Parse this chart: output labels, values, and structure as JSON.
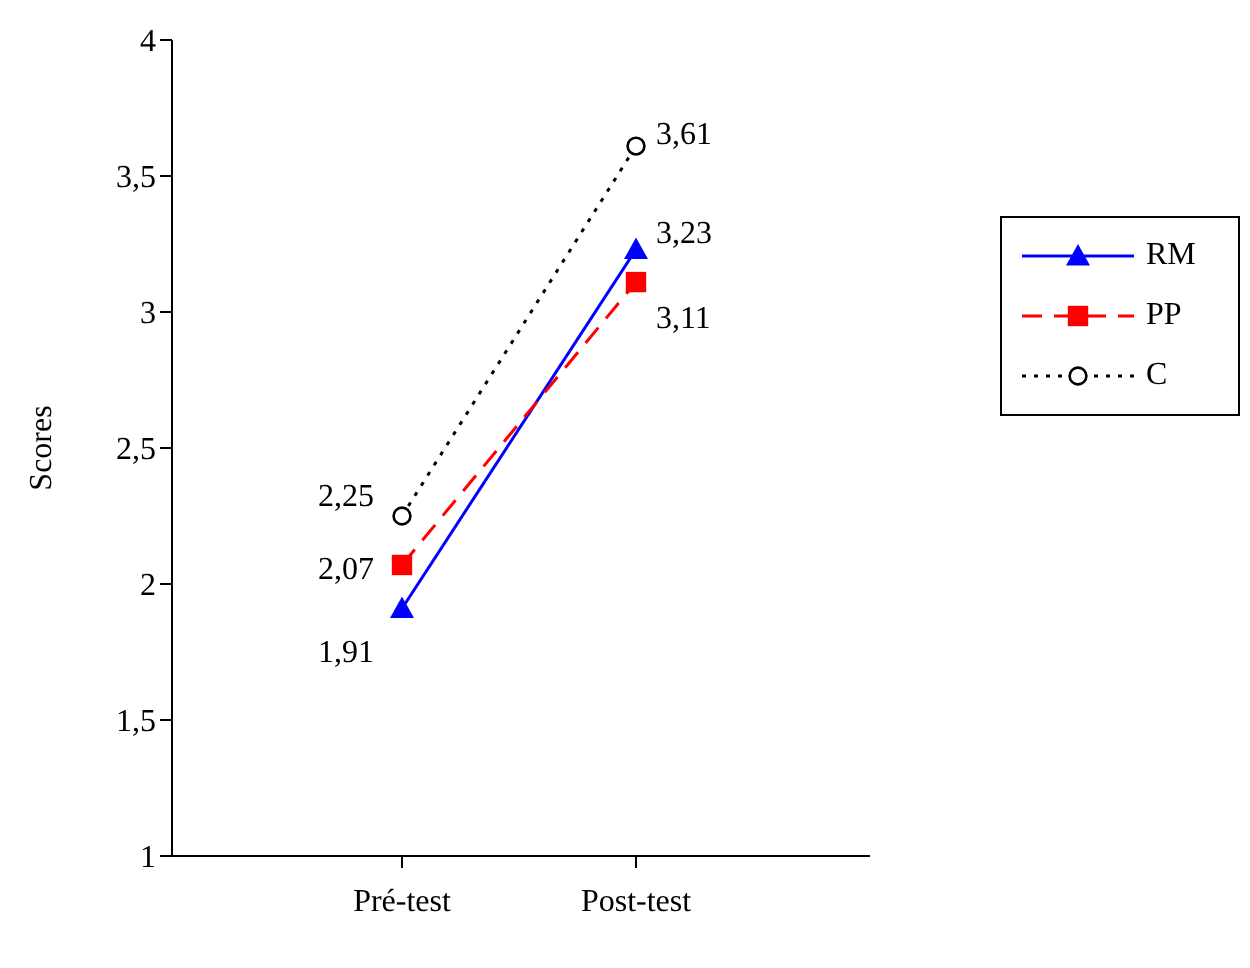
{
  "chart_data": {
    "type": "line",
    "ylabel": "Scores",
    "categories": [
      "Pré-test",
      "Post-test"
    ],
    "series": [
      {
        "name": "RM",
        "color": "#0000ff",
        "values": [
          1.91,
          3.23
        ],
        "value_labels": [
          "1,91",
          "3,23"
        ],
        "marker": "triangle",
        "line_style": "solid"
      },
      {
        "name": "PP",
        "color": "#ff0000",
        "values": [
          2.07,
          3.11
        ],
        "value_labels": [
          "2,07",
          "3,11"
        ],
        "marker": "square",
        "line_style": "dashed"
      },
      {
        "name": "C",
        "color": "#000000",
        "values": [
          2.25,
          3.61
        ],
        "value_labels": [
          "2,25",
          "3,61"
        ],
        "marker": "circle",
        "line_style": "dotted"
      }
    ],
    "ylim": [
      1,
      4
    ],
    "yticks": [
      1,
      {
        "value": 1.5,
        "label": "1,5"
      },
      2,
      {
        "value": 2.5,
        "label": "2,5"
      },
      3,
      {
        "value": 3.5,
        "label": "3,5"
      },
      4
    ],
    "legend": "right",
    "grid": false
  }
}
